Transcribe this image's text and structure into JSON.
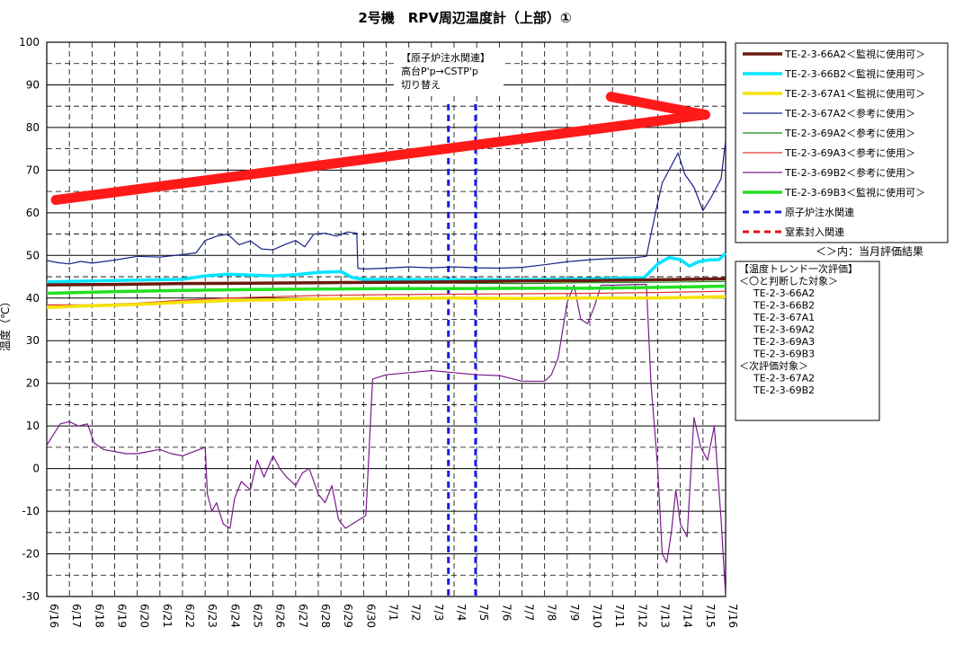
{
  "chart_data": {
    "type": "line",
    "title": "2号機　RPV周辺温度計（上部）①",
    "ylabel": "温度（℃）",
    "xlabel": "",
    "ylim": [
      -30,
      100
    ],
    "yticks": [
      -30,
      -20,
      -10,
      0,
      10,
      20,
      30,
      40,
      50,
      60,
      70,
      80,
      90,
      100
    ],
    "categories": [
      "6/16",
      "6/17",
      "6/18",
      "6/19",
      "6/20",
      "6/21",
      "6/22",
      "6/23",
      "6/24",
      "6/25",
      "6/26",
      "6/27",
      "6/28",
      "6/29",
      "6/30",
      "7/1",
      "7/2",
      "7/3",
      "7/4",
      "7/5",
      "7/6",
      "7/7",
      "7/8",
      "7/9",
      "7/10",
      "7/11",
      "7/12",
      "7/13",
      "7/14",
      "7/15",
      "7/16"
    ],
    "grid": true,
    "legend_position": "right",
    "series": [
      {
        "name": "TE-2-3-66A2＜監視に使用可＞",
        "color": "#6b1a10",
        "width": 3.5,
        "points": [
          [
            0,
            43.1
          ],
          [
            3,
            43.2
          ],
          [
            6,
            43.4
          ],
          [
            9,
            43.5
          ],
          [
            12,
            43.6
          ],
          [
            15,
            43.7
          ],
          [
            18,
            43.8
          ],
          [
            21,
            44
          ],
          [
            24,
            44.1
          ],
          [
            27,
            44.3
          ],
          [
            30,
            44.5
          ]
        ]
      },
      {
        "name": "TE-2-3-66B2＜監視に使用可＞",
        "color": "#00e5ff",
        "width": 3.5,
        "points": [
          [
            0,
            43.8
          ],
          [
            3,
            44.1
          ],
          [
            6,
            44.4
          ],
          [
            7,
            45.2
          ],
          [
            8,
            45.6
          ],
          [
            10,
            45.2
          ],
          [
            11,
            45.5
          ],
          [
            12,
            46
          ],
          [
            13,
            46.2
          ],
          [
            13.5,
            44.8
          ],
          [
            14,
            44.4
          ],
          [
            18,
            44.3
          ],
          [
            21,
            44.3
          ],
          [
            24,
            44.5
          ],
          [
            26.4,
            44.8
          ],
          [
            27,
            48
          ],
          [
            27.5,
            49.5
          ],
          [
            28,
            49
          ],
          [
            28.4,
            47.5
          ],
          [
            28.8,
            48.5
          ],
          [
            29.3,
            49
          ],
          [
            29.7,
            49
          ],
          [
            30,
            50.5
          ]
        ]
      },
      {
        "name": "TE-2-3-67A1＜監視に使用可＞",
        "color": "#f5e300",
        "width": 3.5,
        "points": [
          [
            0,
            37.8
          ],
          [
            1,
            38
          ],
          [
            2,
            38.2
          ],
          [
            3,
            38.3
          ],
          [
            4,
            38.5
          ],
          [
            6,
            39
          ],
          [
            8,
            39.4
          ],
          [
            10,
            39.6
          ],
          [
            12,
            39.8
          ],
          [
            15,
            39.9
          ],
          [
            18,
            40
          ],
          [
            21,
            39.9
          ],
          [
            24,
            40
          ],
          [
            27,
            40
          ],
          [
            30,
            40.3
          ]
        ]
      },
      {
        "name": "TE-2-3-67A2＜参考に使用＞",
        "color": "#16228a",
        "width": 1.2,
        "points": [
          [
            0,
            48.8
          ],
          [
            0.5,
            48.3
          ],
          [
            1,
            48
          ],
          [
            1.5,
            48.6
          ],
          [
            2,
            48.2
          ],
          [
            3,
            48.9
          ],
          [
            4,
            49.8
          ],
          [
            5,
            49.6
          ],
          [
            6,
            50.2
          ],
          [
            6.6,
            50.6
          ],
          [
            7,
            53.5
          ],
          [
            7.5,
            54.5
          ],
          [
            8,
            55
          ],
          [
            8.5,
            52.5
          ],
          [
            9,
            53.4
          ],
          [
            9.5,
            51.5
          ],
          [
            10,
            51.3
          ],
          [
            10.5,
            52.5
          ],
          [
            11,
            53.5
          ],
          [
            11.4,
            52
          ],
          [
            11.8,
            55
          ],
          [
            12.3,
            55.2
          ],
          [
            12.8,
            54.5
          ],
          [
            13.3,
            55.5
          ],
          [
            13.7,
            55.2
          ],
          [
            13.75,
            47
          ],
          [
            14,
            46.8
          ],
          [
            15,
            47
          ],
          [
            16,
            47.3
          ],
          [
            17,
            47.1
          ],
          [
            18,
            47.3
          ],
          [
            19,
            47.1
          ],
          [
            20,
            47
          ],
          [
            21,
            47.2
          ],
          [
            22,
            47.8
          ],
          [
            23,
            48.5
          ],
          [
            24,
            49
          ],
          [
            25,
            49.3
          ],
          [
            26,
            49.5
          ],
          [
            26.5,
            49.8
          ],
          [
            26.9,
            60
          ],
          [
            27.2,
            67
          ],
          [
            27.5,
            70
          ],
          [
            27.9,
            74
          ],
          [
            28.2,
            69
          ],
          [
            28.6,
            66
          ],
          [
            29,
            60.5
          ],
          [
            29.4,
            64
          ],
          [
            29.8,
            68
          ],
          [
            30,
            77
          ]
        ]
      },
      {
        "name": "TE-2-3-69A2＜参考に使用＞",
        "color": "#1d8a1d",
        "width": 1.2,
        "points": [
          [
            0,
            43.3
          ],
          [
            3,
            43.4
          ],
          [
            6,
            43.5
          ],
          [
            9,
            43.6
          ],
          [
            12,
            43.6
          ],
          [
            15,
            43.5
          ],
          [
            18,
            43.5
          ],
          [
            21,
            43.4
          ],
          [
            24,
            43.6
          ],
          [
            27,
            43.7
          ],
          [
            30,
            43.9
          ]
        ]
      },
      {
        "name": "TE-2-3-69A3＜参考に使用＞",
        "color": "#e03030",
        "width": 1.2,
        "points": [
          [
            0,
            38.4
          ],
          [
            2,
            38.4
          ],
          [
            4,
            38.8
          ],
          [
            6,
            39.5
          ],
          [
            8,
            40
          ],
          [
            10,
            40.3
          ],
          [
            12,
            40.6
          ],
          [
            15,
            40.8
          ],
          [
            18,
            40.9
          ],
          [
            21,
            41
          ],
          [
            24,
            41.1
          ],
          [
            27,
            41.3
          ],
          [
            30,
            41.6
          ]
        ]
      },
      {
        "name": "TE-2-3-69B2＜参考に使用＞",
        "color": "#7a1a8e",
        "width": 1.2,
        "points": [
          [
            0,
            5.5
          ],
          [
            0.3,
            8
          ],
          [
            0.6,
            10.5
          ],
          [
            1,
            11
          ],
          [
            1.4,
            10
          ],
          [
            1.8,
            10.5
          ],
          [
            2.1,
            6
          ],
          [
            2.5,
            4.5
          ],
          [
            3,
            4
          ],
          [
            3.5,
            3.5
          ],
          [
            4,
            3.5
          ],
          [
            4.5,
            4
          ],
          [
            5,
            4.5
          ],
          [
            5.5,
            3.5
          ],
          [
            6,
            3
          ],
          [
            6.5,
            4
          ],
          [
            7,
            5
          ],
          [
            7.1,
            -6
          ],
          [
            7.3,
            -10
          ],
          [
            7.5,
            -8
          ],
          [
            7.8,
            -13
          ],
          [
            8.1,
            -14
          ],
          [
            8.3,
            -7
          ],
          [
            8.6,
            -3
          ],
          [
            9,
            -5
          ],
          [
            9.3,
            2
          ],
          [
            9.6,
            -2
          ],
          [
            10,
            3
          ],
          [
            10.3,
            0
          ],
          [
            10.6,
            -2
          ],
          [
            11,
            -4
          ],
          [
            11.3,
            -1
          ],
          [
            11.6,
            0
          ],
          [
            12,
            -6
          ],
          [
            12.3,
            -8
          ],
          [
            12.6,
            -4
          ],
          [
            12.9,
            -12
          ],
          [
            13.2,
            -14
          ],
          [
            13.5,
            -13
          ],
          [
            13.8,
            -12
          ],
          [
            14.1,
            -11
          ],
          [
            14.4,
            21
          ],
          [
            15,
            22
          ],
          [
            16,
            22.5
          ],
          [
            17,
            23
          ],
          [
            18,
            22.5
          ],
          [
            19,
            22
          ],
          [
            20,
            21.8
          ],
          [
            21,
            20.5
          ],
          [
            22,
            20.5
          ],
          [
            22.3,
            22
          ],
          [
            22.6,
            26
          ],
          [
            23,
            39
          ],
          [
            23.3,
            43
          ],
          [
            23.6,
            35
          ],
          [
            23.9,
            34
          ],
          [
            24.2,
            38
          ],
          [
            24.5,
            43
          ],
          [
            25,
            43
          ],
          [
            26,
            43.2
          ],
          [
            26.5,
            43.2
          ],
          [
            26.7,
            20
          ],
          [
            27,
            0
          ],
          [
            27.2,
            -20
          ],
          [
            27.4,
            -22
          ],
          [
            27.6,
            -15
          ],
          [
            27.8,
            -5
          ],
          [
            28,
            -13
          ],
          [
            28.3,
            -16
          ],
          [
            28.6,
            12
          ],
          [
            28.9,
            5
          ],
          [
            29.2,
            2
          ],
          [
            29.5,
            10
          ],
          [
            29.8,
            -12
          ],
          [
            30,
            -30
          ]
        ]
      },
      {
        "name": "TE-2-3-69B3＜監視に使用可＞",
        "color": "#22e022",
        "width": 3.5,
        "points": [
          [
            0,
            41.1
          ],
          [
            3,
            41.5
          ],
          [
            6,
            41.8
          ],
          [
            9,
            42
          ],
          [
            12,
            42.1
          ],
          [
            15,
            42.2
          ],
          [
            18,
            42.2
          ],
          [
            21,
            42.3
          ],
          [
            24,
            42.3
          ],
          [
            27,
            42.5
          ],
          [
            30,
            42.8
          ]
        ]
      }
    ],
    "extra_legend": [
      {
        "name": "原子炉注水関連",
        "color": "#1a1ae6"
      },
      {
        "name": "窒素封入関連",
        "color": "#e01010"
      }
    ],
    "event_lines_x": [
      17.75,
      18.95
    ],
    "annotation": {
      "lines": [
        "【原子炉注水関連】",
        "高台P'p→CSTP'p",
        "切り替え"
      ]
    },
    "trend_arrow": {
      "from": [
        0.4,
        63
      ],
      "to": [
        29.1,
        83
      ]
    }
  },
  "legend_note": "＜＞内：当月評価結果",
  "evaluation_box": {
    "lines": [
      "【温度トレンド一次評価】",
      "＜〇と判断した対象＞",
      "　TE-2-3-66A2",
      "　TE-2-3-66B2",
      "　TE-2-3-67A1",
      "　TE-2-3-69A2",
      "　TE-2-3-69A3",
      "　TE-2-3-69B3",
      "＜次評価対象＞",
      "　TE-2-3-67A2",
      "　TE-2-3-69B2"
    ]
  }
}
